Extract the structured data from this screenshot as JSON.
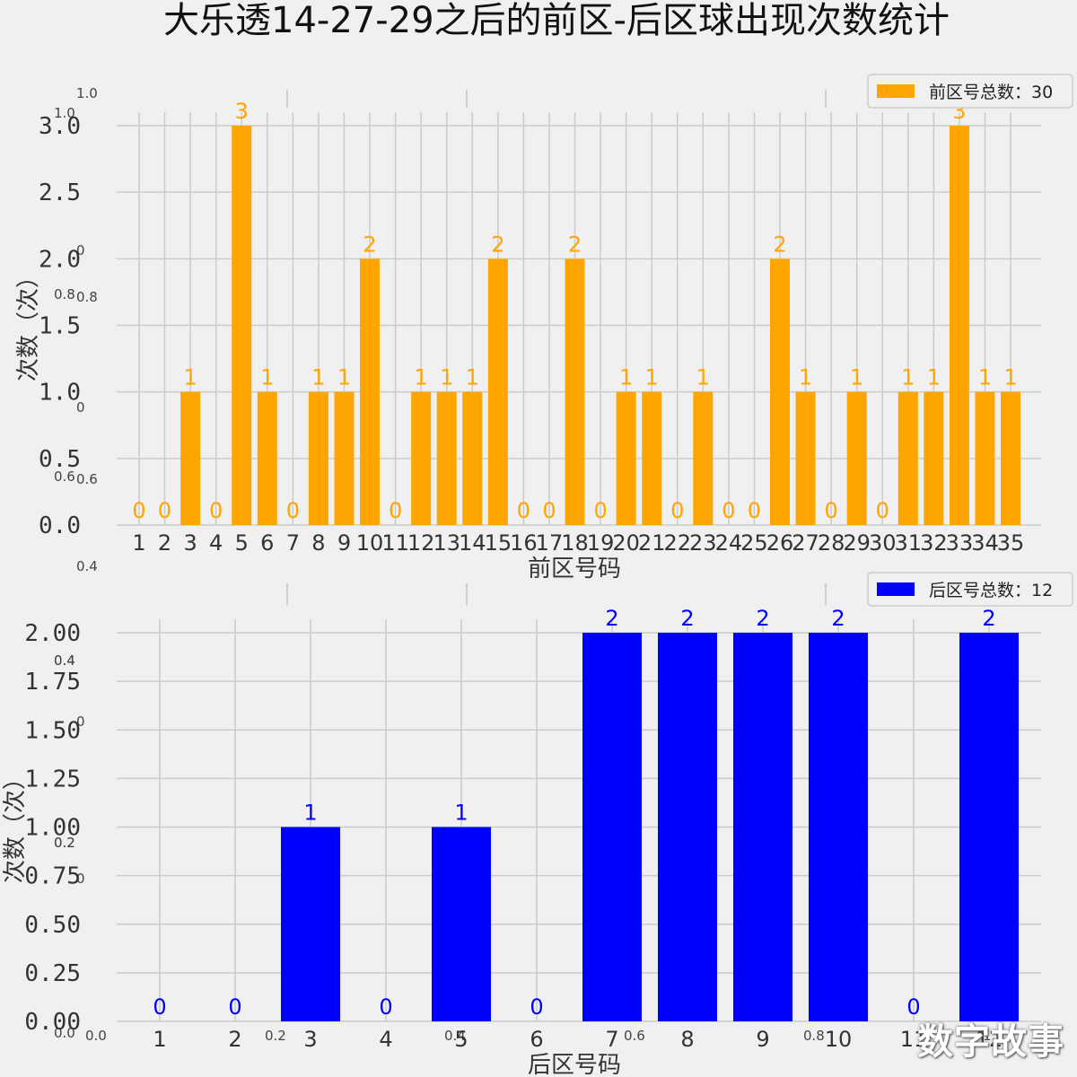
{
  "title": "大乐透14-27-29之后的前区-后区球出现次数统计",
  "watermark": "数字故事",
  "chart_data": [
    {
      "type": "bar",
      "categories": [
        "1",
        "2",
        "3",
        "4",
        "5",
        "6",
        "7",
        "8",
        "9",
        "10",
        "11",
        "12",
        "13",
        "14",
        "15",
        "16",
        "17",
        "18",
        "19",
        "20",
        "21",
        "22",
        "23",
        "24",
        "25",
        "26",
        "27",
        "28",
        "29",
        "30",
        "31",
        "32",
        "33",
        "34",
        "35"
      ],
      "values": [
        0,
        0,
        1,
        0,
        3,
        1,
        0,
        1,
        1,
        2,
        0,
        1,
        1,
        1,
        2,
        0,
        0,
        2,
        0,
        1,
        1,
        0,
        1,
        0,
        0,
        2,
        1,
        0,
        1,
        0,
        1,
        1,
        3,
        1,
        1
      ],
      "color": "#ffa500",
      "xlabel": "前区号码",
      "ylabel": "次数（次）",
      "legend": "前区号总数：30",
      "legend_position": "top-right",
      "ylim": [
        0,
        3
      ],
      "yticks": [
        "0.0",
        "0.5",
        "1.0",
        "1.5",
        "2.0",
        "2.5",
        "3.0"
      ],
      "grid": true
    },
    {
      "type": "bar",
      "categories": [
        "1",
        "2",
        "3",
        "4",
        "5",
        "6",
        "7",
        "8",
        "9",
        "10",
        "11",
        "12"
      ],
      "values": [
        0,
        0,
        1,
        0,
        1,
        0,
        2,
        2,
        2,
        2,
        0,
        2
      ],
      "color": "#0000ff",
      "xlabel": "后区号码",
      "ylabel": "次数（次）",
      "legend": "后区号总数：12",
      "legend_position": "top-right",
      "ylim": [
        0,
        2
      ],
      "yticks": [
        "0.00",
        "0.25",
        "0.50",
        "0.75",
        "1.00",
        "1.25",
        "1.50",
        "1.75",
        "2.00"
      ],
      "grid": true
    }
  ],
  "background_axes": {
    "xticks": [
      "0.0",
      "0.2",
      "0.4",
      "0.6",
      "0.8",
      "1.0"
    ],
    "yticks": [
      "0.0",
      "0.2",
      "0.4",
      "0.6",
      "0.8",
      "1.0"
    ],
    "tick_color": "#444444"
  }
}
